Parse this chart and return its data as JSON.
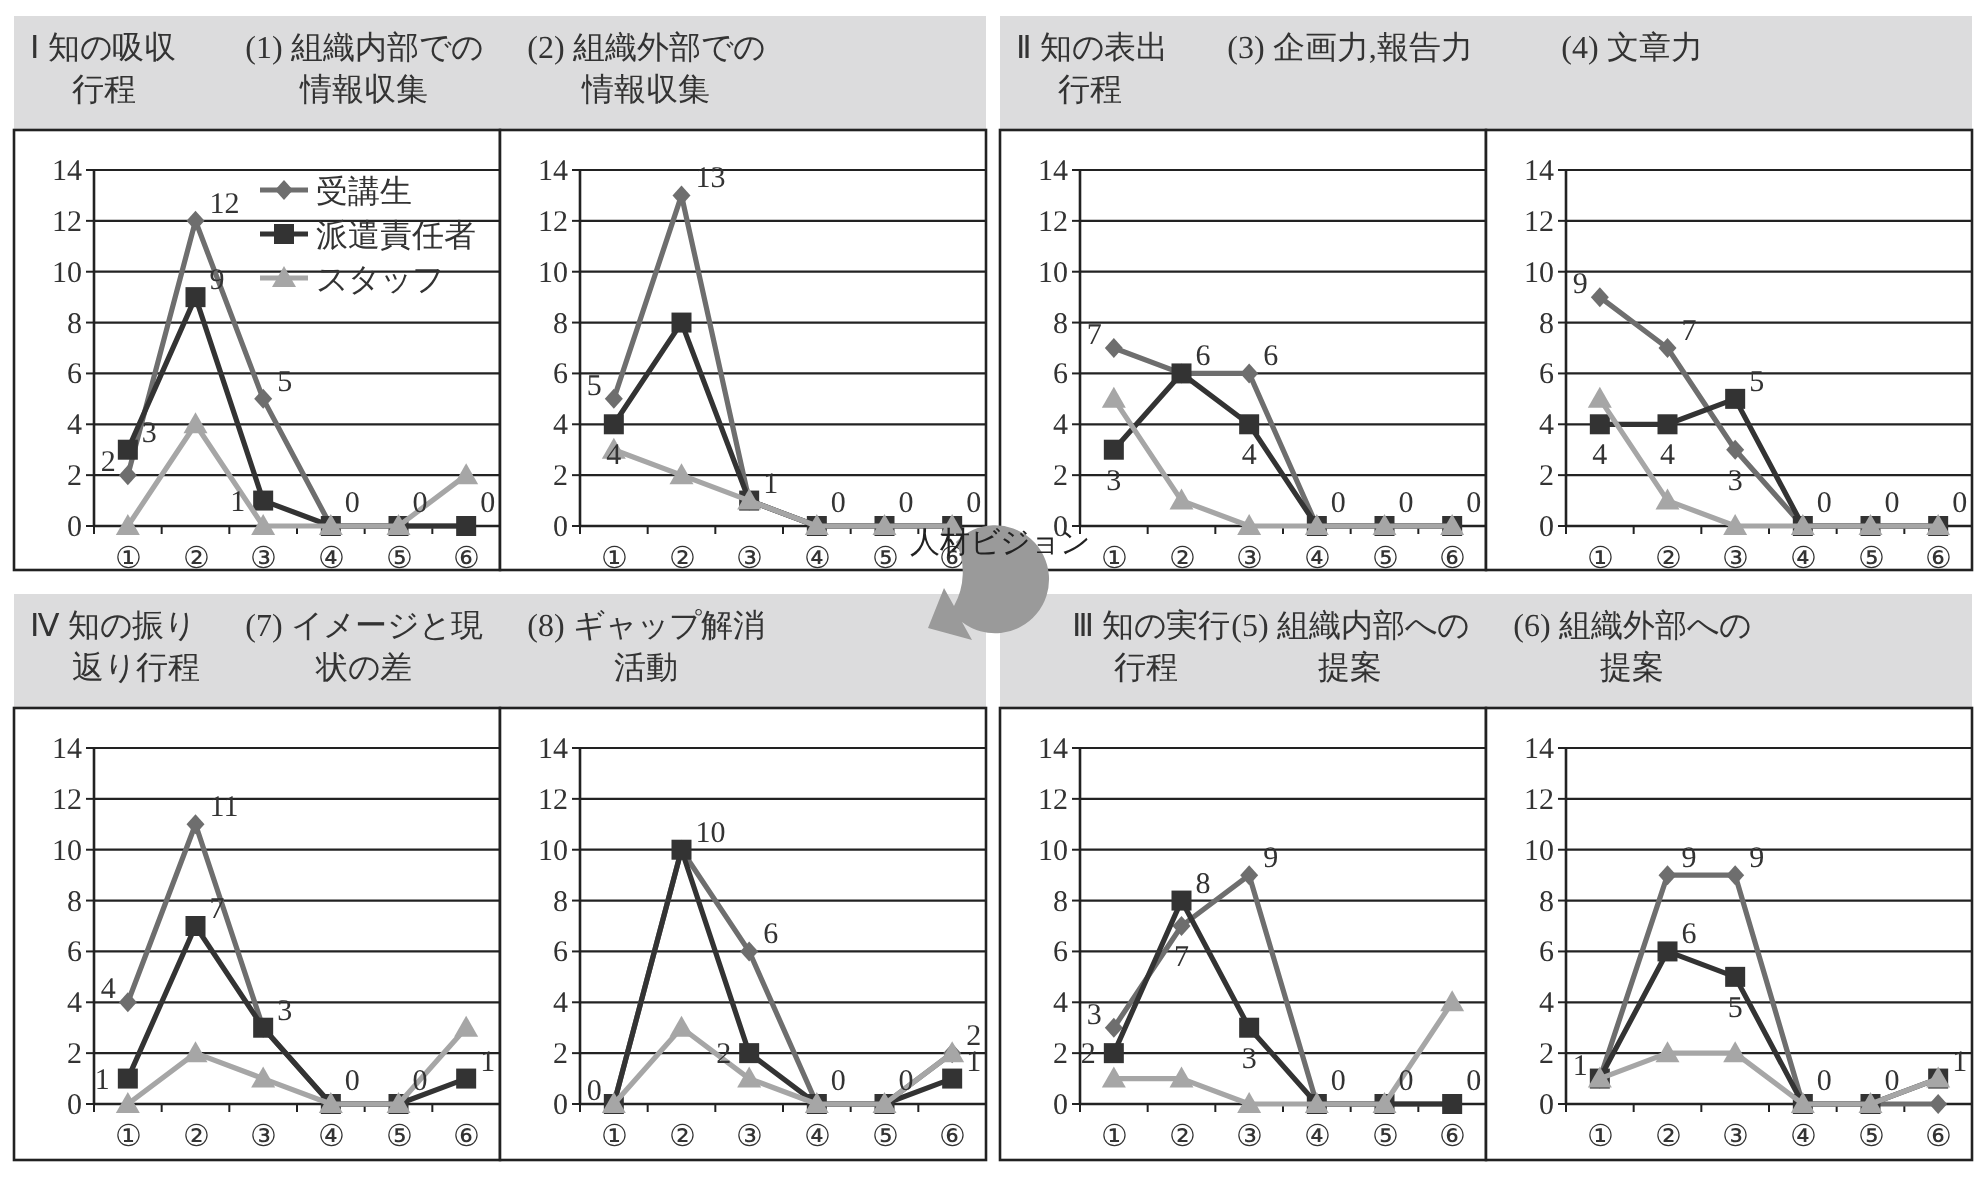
{
  "chart_data": [
    {
      "type": "line",
      "subtitle": "Ⅰ 知の吸収行程",
      "title": "(1) 組織内部での情報収集",
      "categories": [
        "①",
        "②",
        "③",
        "④",
        "⑤",
        "⑥"
      ],
      "ylim": [
        0,
        14
      ],
      "yticks": [
        0,
        2,
        4,
        6,
        8,
        10,
        12,
        14
      ],
      "grid": "y",
      "legend": "top right",
      "annotations": [
        "人材ビジョン"
      ],
      "series": [
        {
          "name": "受講生",
          "color": "#6e6e6e",
          "marker": "diamond",
          "values": [
            2,
            12,
            5,
            0,
            0,
            0
          ],
          "value_labels": [
            "2",
            "12",
            "5",
            null,
            null,
            null
          ]
        },
        {
          "name": "派遣責任者",
          "color": "#333333",
          "marker": "square",
          "values": [
            3,
            9,
            1,
            0,
            0,
            0
          ],
          "value_labels": [
            "3",
            "9",
            "1",
            "0",
            "0",
            "0"
          ]
        },
        {
          "name": "スタッフ",
          "color": "#a6a6a6",
          "marker": "triangle",
          "values": [
            0,
            4,
            0,
            0,
            0,
            2
          ]
        }
      ]
    },
    {
      "type": "line",
      "title": "(2) 組織外部での情報収集",
      "categories": [
        "①",
        "②",
        "③",
        "④",
        "⑤",
        "⑥"
      ],
      "ylim": [
        0,
        14
      ],
      "yticks": [
        0,
        2,
        4,
        6,
        8,
        10,
        12,
        14
      ],
      "grid": "y",
      "series": [
        {
          "color": "#6e6e6e",
          "marker": "diamond",
          "values": [
            5,
            13,
            1,
            0,
            0,
            0
          ],
          "value_labels": [
            "5",
            "13",
            null,
            null,
            null,
            null
          ]
        },
        {
          "color": "#333333",
          "marker": "square",
          "values": [
            4,
            8,
            1,
            0,
            0,
            0
          ],
          "value_labels": [
            "4",
            null,
            "1",
            "0",
            "0",
            "0"
          ]
        },
        {
          "color": "#a6a6a6",
          "marker": "triangle",
          "values": [
            3,
            2,
            1,
            0,
            0,
            0
          ]
        }
      ]
    },
    {
      "type": "line",
      "subtitle": "Ⅱ 知の表出行程",
      "title": "(3) 企画力,報告力",
      "categories": [
        "①",
        "②",
        "③",
        "④",
        "⑤",
        "⑥"
      ],
      "ylim": [
        0,
        14
      ],
      "yticks": [
        0,
        2,
        4,
        6,
        8,
        10,
        12,
        14
      ],
      "grid": "y",
      "series": [
        {
          "color": "#6e6e6e",
          "marker": "diamond",
          "values": [
            7,
            6,
            6,
            0,
            0,
            0
          ],
          "value_labels": [
            "7",
            "6",
            "6",
            null,
            null,
            null
          ]
        },
        {
          "color": "#333333",
          "marker": "square",
          "values": [
            3,
            6,
            4,
            0,
            0,
            0
          ],
          "value_labels": [
            "3",
            null,
            "4",
            "0",
            "0",
            "0"
          ]
        },
        {
          "color": "#a6a6a6",
          "marker": "triangle",
          "values": [
            5,
            1,
            0,
            0,
            0,
            0
          ]
        }
      ]
    },
    {
      "type": "line",
      "title": "(4) 文章力",
      "categories": [
        "①",
        "②",
        "③",
        "④",
        "⑤",
        "⑥"
      ],
      "ylim": [
        0,
        14
      ],
      "yticks": [
        0,
        2,
        4,
        6,
        8,
        10,
        12,
        14
      ],
      "grid": "y",
      "series": [
        {
          "color": "#6e6e6e",
          "marker": "diamond",
          "values": [
            9,
            7,
            3,
            0,
            0,
            0
          ],
          "value_labels": [
            "9",
            "7",
            "3",
            null,
            null,
            null
          ]
        },
        {
          "color": "#333333",
          "marker": "square",
          "values": [
            4,
            4,
            5,
            0,
            0,
            0
          ],
          "value_labels": [
            "4",
            "4",
            "5",
            "0",
            "0",
            "0"
          ]
        },
        {
          "color": "#a6a6a6",
          "marker": "triangle",
          "values": [
            5,
            1,
            0,
            0,
            0,
            0
          ]
        }
      ]
    },
    {
      "type": "line",
      "subtitle": "Ⅳ 知の振り返り行程",
      "title": "(7) イメージと現状の差",
      "categories": [
        "①",
        "②",
        "③",
        "④",
        "⑤",
        "⑥"
      ],
      "ylim": [
        0,
        14
      ],
      "yticks": [
        0,
        2,
        4,
        6,
        8,
        10,
        12,
        14
      ],
      "grid": "y",
      "series": [
        {
          "color": "#6e6e6e",
          "marker": "diamond",
          "values": [
            4,
            11,
            3,
            0,
            0,
            null
          ],
          "value_labels": [
            "4",
            "11",
            "3",
            null,
            null,
            null
          ]
        },
        {
          "color": "#333333",
          "marker": "square",
          "values": [
            1,
            7,
            3,
            0,
            0,
            1
          ],
          "value_labels": [
            "1",
            "7",
            null,
            "0",
            "0",
            "1"
          ]
        },
        {
          "color": "#a6a6a6",
          "marker": "triangle",
          "values": [
            0,
            2,
            1,
            0,
            0,
            3
          ]
        }
      ]
    },
    {
      "type": "line",
      "title": "(8) ギャップ解消活動",
      "categories": [
        "①",
        "②",
        "③",
        "④",
        "⑤",
        "⑥"
      ],
      "ylim": [
        0,
        14
      ],
      "yticks": [
        0,
        2,
        4,
        6,
        8,
        10,
        12,
        14
      ],
      "grid": "y",
      "series": [
        {
          "color": "#6e6e6e",
          "marker": "diamond",
          "values": [
            0,
            10,
            6,
            0,
            0,
            2
          ],
          "value_labels": [
            "0",
            "10",
            "6",
            null,
            null,
            "2"
          ]
        },
        {
          "color": "#333333",
          "marker": "square",
          "values": [
            0,
            10,
            2,
            0,
            0,
            1
          ],
          "value_labels": [
            null,
            null,
            "2",
            "0",
            "0",
            "1"
          ]
        },
        {
          "color": "#a6a6a6",
          "marker": "triangle",
          "values": [
            0,
            3,
            1,
            0,
            0,
            2
          ]
        }
      ]
    },
    {
      "type": "line",
      "subtitle": "Ⅲ 知の実行行程",
      "title": "(5) 組織内部への提案",
      "categories": [
        "①",
        "②",
        "③",
        "④",
        "⑤",
        "⑥"
      ],
      "ylim": [
        0,
        14
      ],
      "yticks": [
        0,
        2,
        4,
        6,
        8,
        10,
        12,
        14
      ],
      "grid": "y",
      "series": [
        {
          "color": "#6e6e6e",
          "marker": "diamond",
          "values": [
            3,
            7,
            9,
            0,
            0,
            0
          ],
          "value_labels": [
            "3",
            "7",
            "9",
            null,
            null,
            null
          ]
        },
        {
          "color": "#333333",
          "marker": "square",
          "values": [
            2,
            8,
            3,
            0,
            0,
            0
          ],
          "value_labels": [
            "2",
            "8",
            "3",
            "0",
            "0",
            "0"
          ]
        },
        {
          "color": "#a6a6a6",
          "marker": "triangle",
          "values": [
            1,
            1,
            0,
            0,
            0,
            4
          ]
        }
      ]
    },
    {
      "type": "line",
      "title": "(6) 組織外部への提案",
      "categories": [
        "①",
        "②",
        "③",
        "④",
        "⑤",
        "⑥"
      ],
      "ylim": [
        0,
        14
      ],
      "yticks": [
        0,
        2,
        4,
        6,
        8,
        10,
        12,
        14
      ],
      "grid": "y",
      "series": [
        {
          "color": "#6e6e6e",
          "marker": "diamond",
          "values": [
            1,
            9,
            9,
            0,
            0,
            0
          ],
          "value_labels": [
            "1",
            "9",
            "9",
            null,
            null,
            null
          ]
        },
        {
          "color": "#333333",
          "marker": "square",
          "values": [
            1,
            6,
            5,
            0,
            0,
            1
          ],
          "value_labels": [
            null,
            "6",
            "5",
            "0",
            "0",
            "1"
          ]
        },
        {
          "color": "#a6a6a6",
          "marker": "triangle",
          "values": [
            1,
            2,
            2,
            0,
            0,
            1
          ]
        }
      ]
    }
  ]
}
